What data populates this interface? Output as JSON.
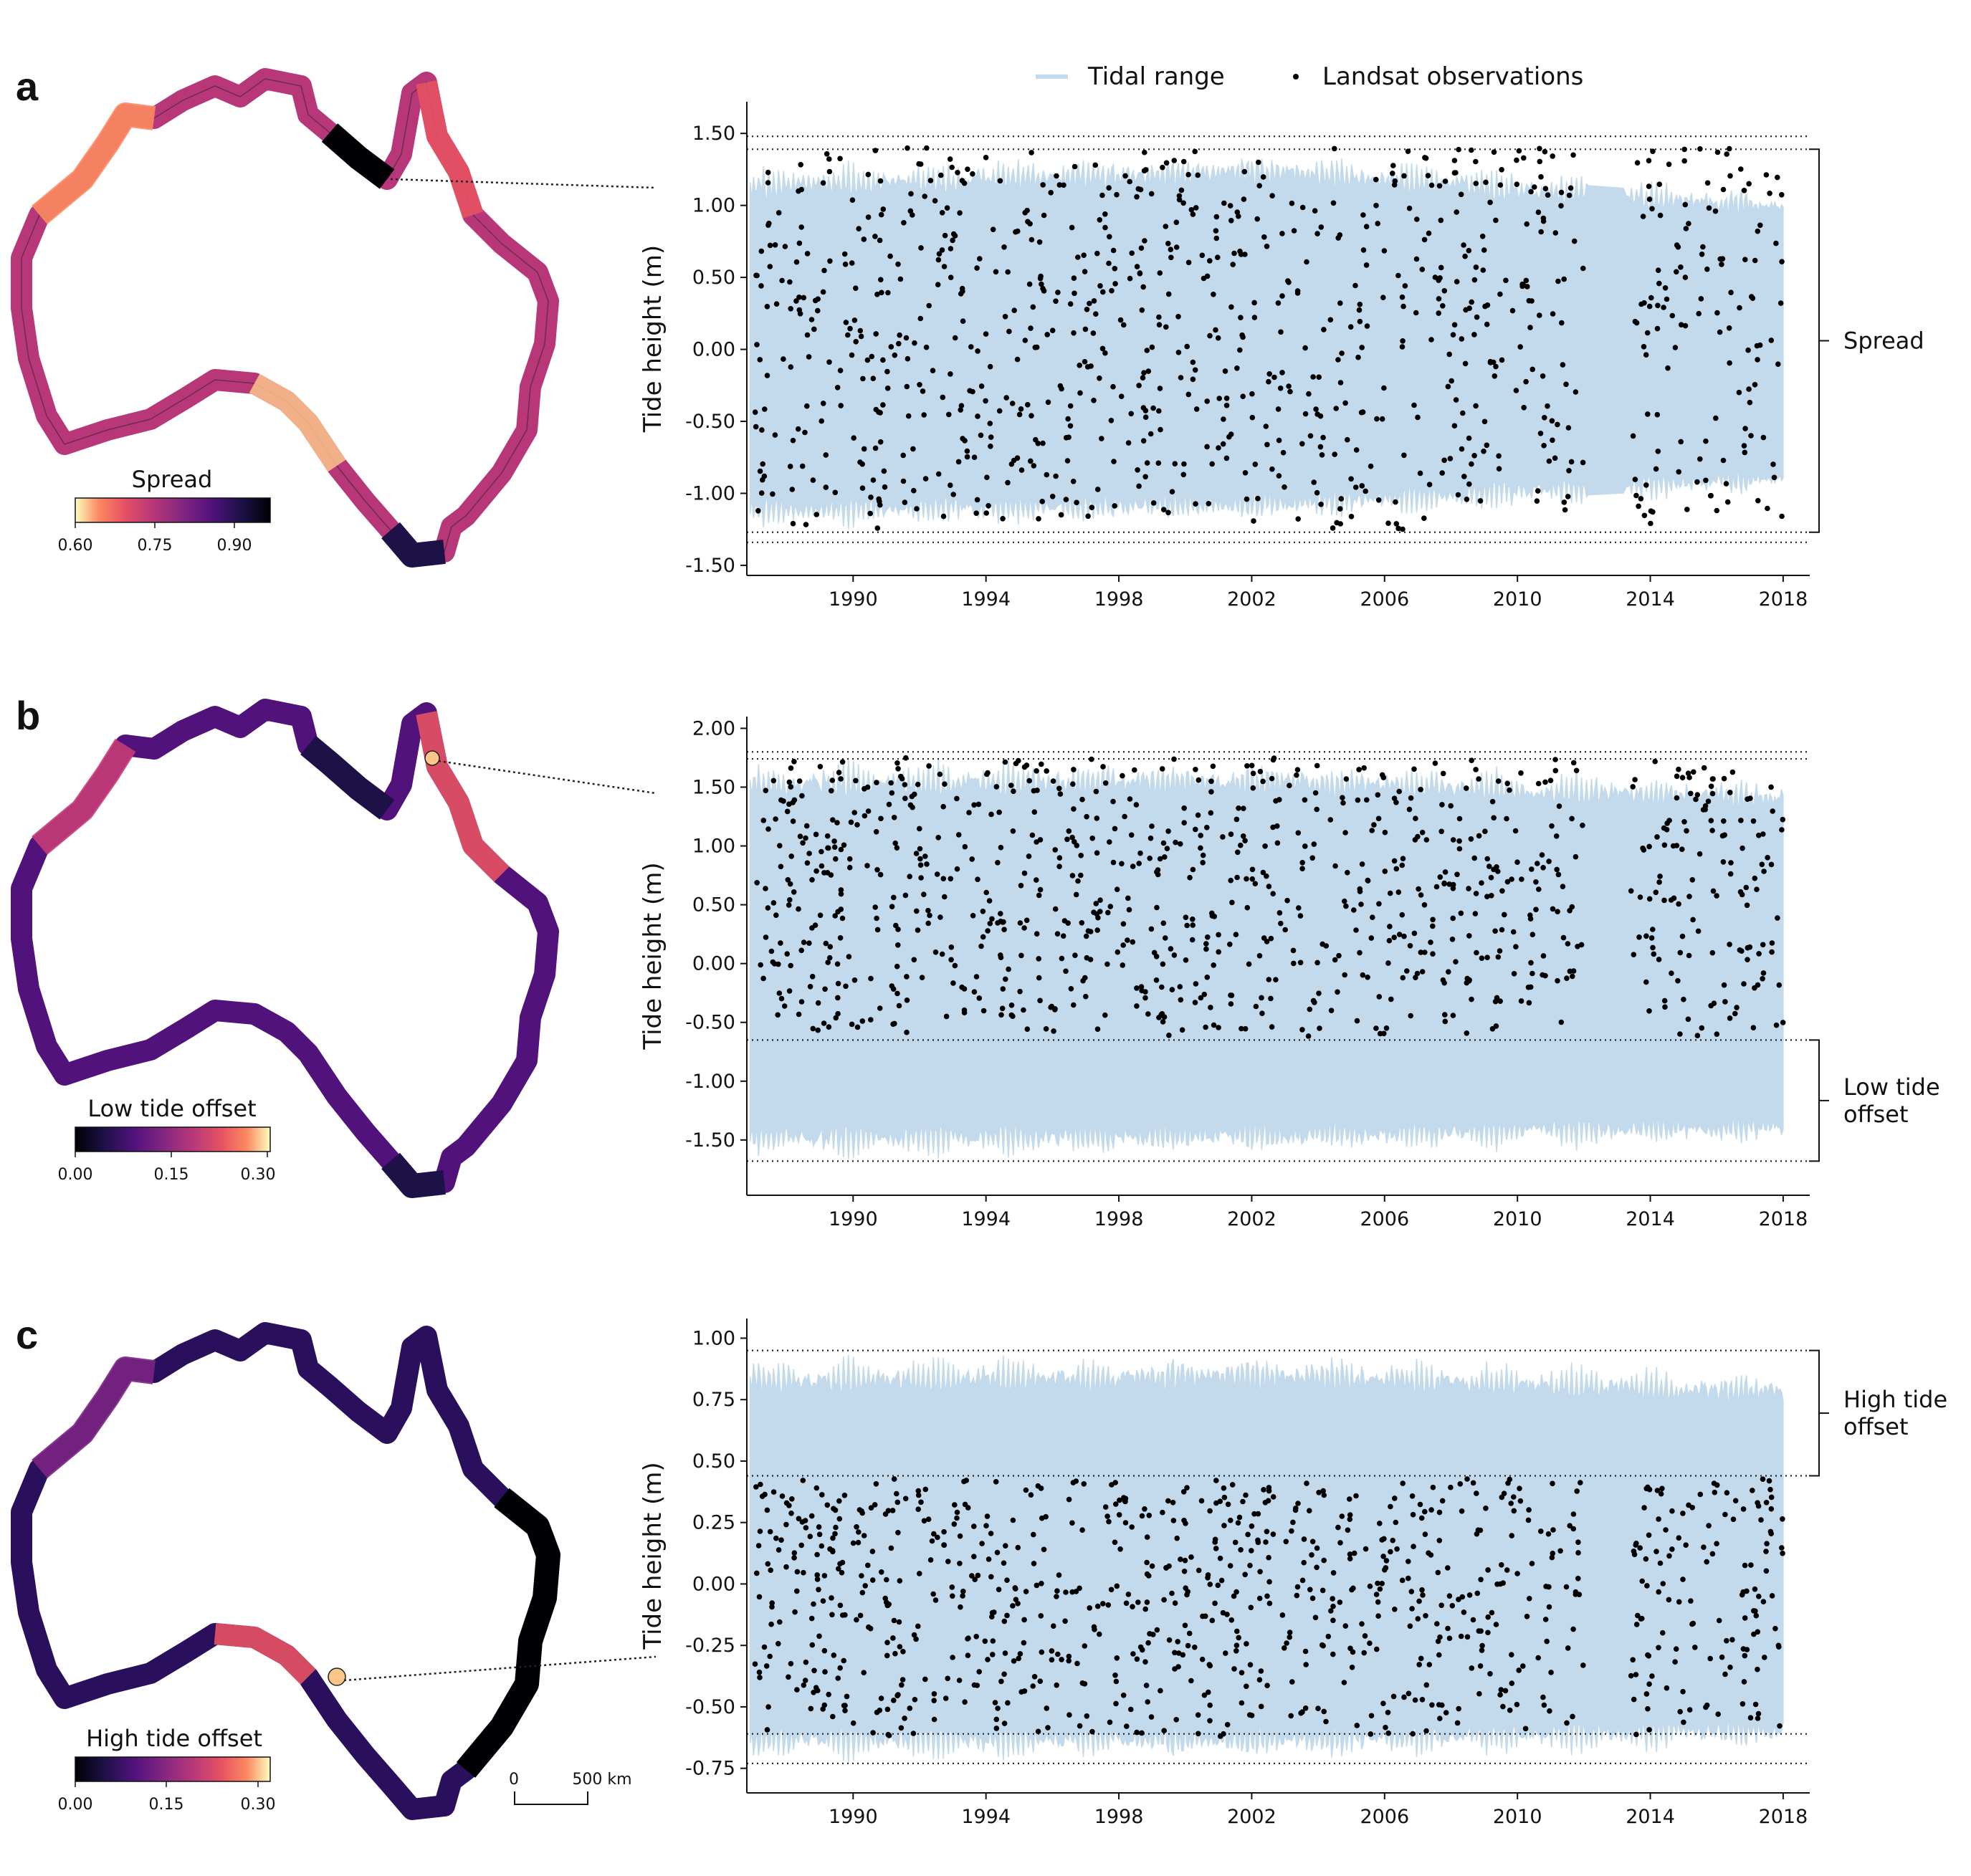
{
  "legend": {
    "tidal_range_label": "Tidal range",
    "landsat_label": "Landsat observations"
  },
  "colors": {
    "tidal": "#c3d9ec",
    "points": "#000000",
    "coast_outline": "#222222"
  },
  "scale_bar": {
    "zero": "0",
    "distance": "500 km"
  },
  "chart_data": [
    {
      "panel": "a",
      "type": "scatter",
      "title": "",
      "xlabel": "",
      "ylabel": "Tide height (m)",
      "xlim": [
        1986.8,
        2018.8
      ],
      "ylim": [
        -1.57,
        1.72
      ],
      "xticks": [
        1990,
        1994,
        1998,
        2002,
        2006,
        2010,
        2014,
        2018
      ],
      "yticks": [
        1.5,
        1.0,
        0.5,
        0.0,
        -0.5,
        -1.0,
        -1.5
      ],
      "ytick_labels": [
        "1.50",
        "1.00",
        "0.50",
        "0.00",
        "-0.50",
        "-1.00",
        "-1.50"
      ],
      "tidal_envelope": {
        "x_start": 1986.9,
        "x_end": 2018.0,
        "upper_start": 1.25,
        "upper_mid": 1.35,
        "upper_end": 1.08,
        "lower_start": -1.22,
        "lower_mid": -1.18,
        "lower_end": -0.98,
        "gap": [
          2012.1,
          2013.2
        ]
      },
      "observations": {
        "count": 950,
        "ymin": -1.25,
        "ymax": 1.4,
        "gap": [
          2012.0,
          2013.4
        ]
      },
      "reference_lines": [
        1.48,
        1.39,
        -1.27,
        -1.34
      ],
      "bracket": {
        "top": 1.39,
        "bottom": -1.27,
        "label": [
          "Spread"
        ]
      },
      "map": {
        "colorbar_title": "Spread",
        "colorbar_ticks": [
          "0.60",
          "0.75",
          "0.90"
        ],
        "colormap": "magma_reversed"
      }
    },
    {
      "panel": "b",
      "type": "scatter",
      "title": "",
      "xlabel": "",
      "ylabel": "Tide height (m)",
      "xlim": [
        1986.8,
        2018.8
      ],
      "ylim": [
        -1.97,
        2.1
      ],
      "xticks": [
        1990,
        1994,
        1998,
        2002,
        2006,
        2010,
        2014,
        2018
      ],
      "yticks": [
        2.0,
        1.5,
        1.0,
        0.5,
        0.0,
        -0.5,
        -1.0,
        -1.5
      ],
      "ytick_labels": [
        "2.00",
        "1.50",
        "1.00",
        "0.50",
        "0.00",
        "-0.50",
        "-1.00",
        "-1.50"
      ],
      "tidal_envelope": {
        "x_start": 1986.9,
        "x_end": 2018.0,
        "upper_start": 1.68,
        "upper_mid": 1.7,
        "upper_end": 1.55,
        "lower_start": -1.62,
        "lower_mid": -1.6,
        "lower_end": -1.52,
        "gap": null
      },
      "observations": {
        "count": 950,
        "ymin": -0.62,
        "ymax": 1.75,
        "gap": [
          2012.0,
          2013.4
        ]
      },
      "reference_lines": [
        1.8,
        1.74,
        -0.65,
        -1.68
      ],
      "bracket": {
        "top": -0.65,
        "bottom": -1.68,
        "label": [
          "Low tide",
          "offset"
        ]
      },
      "map": {
        "colorbar_title": "Low tide offset",
        "colorbar_ticks": [
          "0.00",
          "0.15",
          "0.30"
        ],
        "colormap": "magma"
      }
    },
    {
      "panel": "c",
      "type": "scatter",
      "title": "",
      "xlabel": "",
      "ylabel": "Tide height (m)",
      "xlim": [
        1986.8,
        2018.8
      ],
      "ylim": [
        -0.85,
        1.08
      ],
      "xticks": [
        1990,
        1994,
        1998,
        2002,
        2006,
        2010,
        2014,
        2018
      ],
      "yticks": [
        1.0,
        0.75,
        0.5,
        0.25,
        0.0,
        -0.25,
        -0.5,
        -0.75
      ],
      "ytick_labels": [
        "1.00",
        "0.75",
        "0.50",
        "0.25",
        "0.00",
        "-0.25",
        "-0.50",
        "-0.75"
      ],
      "tidal_envelope": {
        "x_start": 1986.9,
        "x_end": 2018.0,
        "upper_start": 0.9,
        "upper_mid": 0.92,
        "upper_end": 0.85,
        "lower_start": -0.7,
        "lower_mid": -0.7,
        "lower_end": -0.66,
        "gap": null
      },
      "observations": {
        "count": 950,
        "ymin": -0.62,
        "ymax": 0.43,
        "gap": [
          2012.0,
          2013.4
        ]
      },
      "reference_lines": [
        0.95,
        0.44,
        -0.61,
        -0.73
      ],
      "bracket": {
        "top": 0.95,
        "bottom": 0.44,
        "label": [
          "High tide",
          "offset"
        ]
      },
      "map": {
        "colorbar_title": "High tide offset",
        "colorbar_ticks": [
          "0.00",
          "0.15",
          "0.30"
        ],
        "colormap": "magma"
      }
    }
  ]
}
